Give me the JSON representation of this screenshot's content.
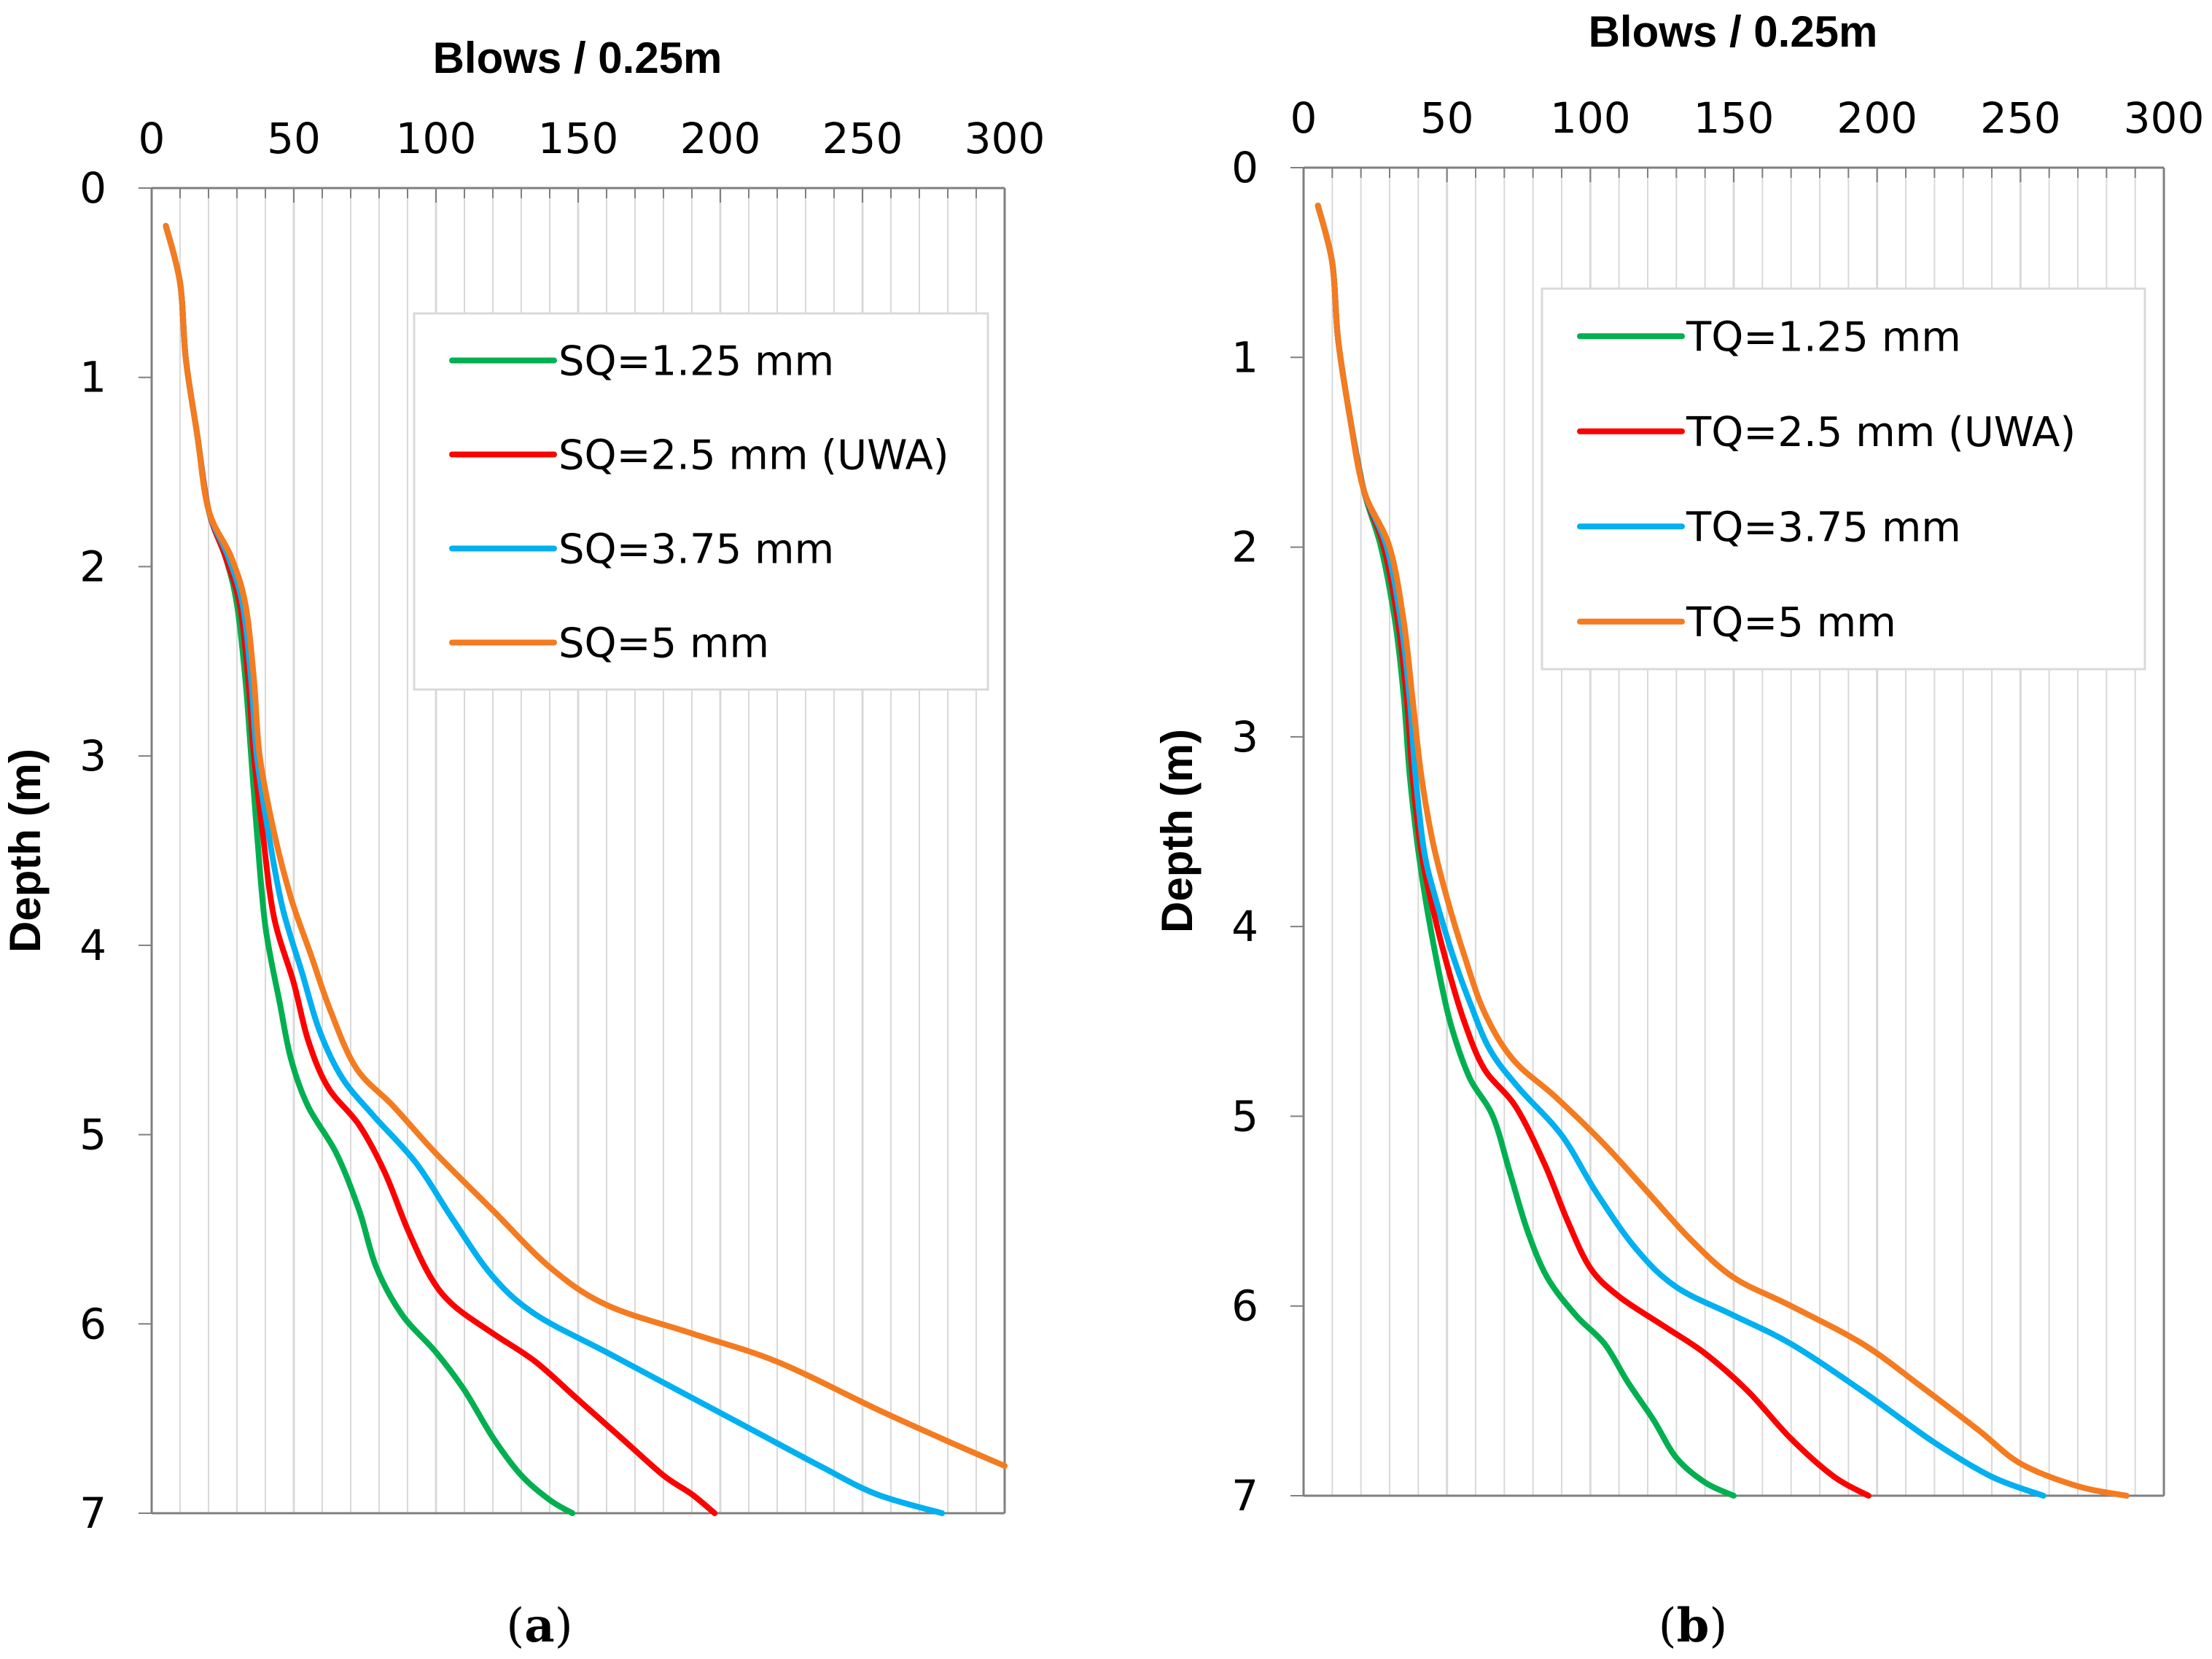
{
  "chart_data": [
    {
      "type": "line",
      "panel_label": {
        "open": "(",
        "letter": "a",
        "close": ")"
      },
      "title": "",
      "xlabel": "Blows  / 0.25m",
      "ylabel": "Depth (m)",
      "x_axis_position": "top",
      "y_inverted": true,
      "xlim": [
        0,
        300
      ],
      "ylim": [
        0,
        7
      ],
      "xticks": [
        "0",
        "50",
        "100",
        "150",
        "200",
        "250",
        "300"
      ],
      "yticks": [
        "0",
        "1",
        "2",
        "3",
        "4",
        "5",
        "6",
        "7"
      ],
      "grid": "vertical",
      "legend": {
        "position": "top-right"
      },
      "series": [
        {
          "name": "SQ=1.25 mm",
          "color": "#00B050",
          "points": [
            [
              5,
              0.2
            ],
            [
              10,
              0.5
            ],
            [
              12,
              0.9
            ],
            [
              16,
              1.3
            ],
            [
              20,
              1.7
            ],
            [
              26,
              1.95
            ],
            [
              30,
              2.2
            ],
            [
              33,
              2.6
            ],
            [
              35,
              3.0
            ],
            [
              37,
              3.4
            ],
            [
              40,
              3.9
            ],
            [
              45,
              4.3
            ],
            [
              49,
              4.6
            ],
            [
              55,
              4.85
            ],
            [
              65,
              5.1
            ],
            [
              73,
              5.4
            ],
            [
              79,
              5.7
            ],
            [
              88,
              5.95
            ],
            [
              100,
              6.15
            ],
            [
              110,
              6.35
            ],
            [
              120,
              6.6
            ],
            [
              130,
              6.8
            ],
            [
              140,
              6.93
            ],
            [
              148,
              7.0
            ]
          ]
        },
        {
          "name": "SQ=2.5 mm (UWA)",
          "color": "#FF0000",
          "points": [
            [
              5,
              0.2
            ],
            [
              10,
              0.5
            ],
            [
              12,
              0.9
            ],
            [
              16,
              1.3
            ],
            [
              20,
              1.7
            ],
            [
              26,
              1.95
            ],
            [
              31,
              2.2
            ],
            [
              34,
              2.6
            ],
            [
              36,
              3.0
            ],
            [
              39,
              3.4
            ],
            [
              43,
              3.85
            ],
            [
              50,
              4.2
            ],
            [
              55,
              4.5
            ],
            [
              62,
              4.75
            ],
            [
              73,
              4.95
            ],
            [
              82,
              5.2
            ],
            [
              90,
              5.5
            ],
            [
              98,
              5.75
            ],
            [
              106,
              5.9
            ],
            [
              120,
              6.05
            ],
            [
              135,
              6.2
            ],
            [
              150,
              6.4
            ],
            [
              165,
              6.6
            ],
            [
              180,
              6.8
            ],
            [
              190,
              6.9
            ],
            [
              198,
              7.0
            ]
          ]
        },
        {
          "name": "SQ=3.75 mm",
          "color": "#00B0F0",
          "points": [
            [
              5,
              0.2
            ],
            [
              10,
              0.5
            ],
            [
              12,
              0.9
            ],
            [
              16,
              1.3
            ],
            [
              20,
              1.7
            ],
            [
              27,
              1.95
            ],
            [
              32,
              2.2
            ],
            [
              35,
              2.6
            ],
            [
              37,
              3.0
            ],
            [
              41,
              3.4
            ],
            [
              46,
              3.8
            ],
            [
              53,
              4.15
            ],
            [
              59,
              4.45
            ],
            [
              67,
              4.7
            ],
            [
              78,
              4.9
            ],
            [
              93,
              5.15
            ],
            [
              106,
              5.45
            ],
            [
              120,
              5.75
            ],
            [
              135,
              5.95
            ],
            [
              160,
              6.15
            ],
            [
              185,
              6.35
            ],
            [
              210,
              6.55
            ],
            [
              235,
              6.75
            ],
            [
              255,
              6.9
            ],
            [
              278,
              7.0
            ]
          ]
        },
        {
          "name": "SQ=5 mm",
          "color": "#F47B20",
          "points": [
            [
              5,
              0.2
            ],
            [
              10,
              0.5
            ],
            [
              12,
              0.9
            ],
            [
              16,
              1.3
            ],
            [
              20,
              1.7
            ],
            [
              28,
              1.95
            ],
            [
              33,
              2.2
            ],
            [
              36,
              2.6
            ],
            [
              38,
              3.0
            ],
            [
              43,
              3.4
            ],
            [
              49,
              3.75
            ],
            [
              56,
              4.05
            ],
            [
              63,
              4.35
            ],
            [
              72,
              4.65
            ],
            [
              85,
              4.85
            ],
            [
              100,
              5.1
            ],
            [
              120,
              5.4
            ],
            [
              140,
              5.7
            ],
            [
              160,
              5.9
            ],
            [
              190,
              6.05
            ],
            [
              220,
              6.2
            ],
            [
              255,
              6.45
            ],
            [
              280,
              6.62
            ],
            [
              300,
              6.75
            ]
          ]
        }
      ]
    },
    {
      "type": "line",
      "panel_label": {
        "open": "(",
        "letter": "b",
        "close": ")"
      },
      "title": "",
      "xlabel": "Blows  / 0.25m",
      "ylabel": "Depth (m)",
      "x_axis_position": "top",
      "y_inverted": true,
      "xlim": [
        0,
        300
      ],
      "ylim": [
        0,
        7
      ],
      "xticks": [
        "0",
        "50",
        "100",
        "150",
        "200",
        "250",
        "300"
      ],
      "yticks": [
        "0",
        "1",
        "2",
        "3",
        "4",
        "5",
        "6",
        "7"
      ],
      "grid": "vertical",
      "legend": {
        "position": "top-right"
      },
      "series": [
        {
          "name": "TQ=1.25 mm",
          "color": "#00B050",
          "points": [
            [
              5,
              0.2
            ],
            [
              10,
              0.5
            ],
            [
              12,
              0.9
            ],
            [
              16,
              1.3
            ],
            [
              21,
              1.7
            ],
            [
              27,
              2.0
            ],
            [
              32,
              2.4
            ],
            [
              35,
              2.8
            ],
            [
              37,
              3.2
            ],
            [
              40,
              3.6
            ],
            [
              43,
              3.9
            ],
            [
              48,
              4.3
            ],
            [
              52,
              4.55
            ],
            [
              58,
              4.8
            ],
            [
              66,
              5.0
            ],
            [
              72,
              5.3
            ],
            [
              78,
              5.6
            ],
            [
              85,
              5.85
            ],
            [
              95,
              6.05
            ],
            [
              105,
              6.2
            ],
            [
              113,
              6.4
            ],
            [
              122,
              6.6
            ],
            [
              130,
              6.8
            ],
            [
              140,
              6.93
            ],
            [
              150,
              7.0
            ]
          ]
        },
        {
          "name": "TQ=2.5 mm (UWA)",
          "color": "#FF0000",
          "points": [
            [
              5,
              0.2
            ],
            [
              10,
              0.5
            ],
            [
              12,
              0.9
            ],
            [
              16,
              1.3
            ],
            [
              21,
              1.7
            ],
            [
              28,
              2.0
            ],
            [
              33,
              2.4
            ],
            [
              36,
              2.8
            ],
            [
              38,
              3.2
            ],
            [
              41,
              3.6
            ],
            [
              45,
              3.9
            ],
            [
              50,
              4.2
            ],
            [
              56,
              4.5
            ],
            [
              63,
              4.75
            ],
            [
              74,
              4.95
            ],
            [
              84,
              5.25
            ],
            [
              92,
              5.55
            ],
            [
              100,
              5.8
            ],
            [
              110,
              5.95
            ],
            [
              125,
              6.1
            ],
            [
              140,
              6.25
            ],
            [
              155,
              6.45
            ],
            [
              170,
              6.7
            ],
            [
              185,
              6.9
            ],
            [
              197,
              7.0
            ]
          ]
        },
        {
          "name": "TQ=3.75 mm",
          "color": "#00B0F0",
          "points": [
            [
              5,
              0.2
            ],
            [
              10,
              0.5
            ],
            [
              12,
              0.9
            ],
            [
              16,
              1.3
            ],
            [
              21,
              1.7
            ],
            [
              29,
              2.0
            ],
            [
              34,
              2.4
            ],
            [
              37,
              2.8
            ],
            [
              39,
              3.2
            ],
            [
              42,
              3.6
            ],
            [
              46,
              3.85
            ],
            [
              52,
              4.15
            ],
            [
              58,
              4.4
            ],
            [
              65,
              4.65
            ],
            [
              75,
              4.85
            ],
            [
              90,
              5.1
            ],
            [
              102,
              5.4
            ],
            [
              116,
              5.7
            ],
            [
              130,
              5.9
            ],
            [
              150,
              6.05
            ],
            [
              170,
              6.2
            ],
            [
              195,
              6.45
            ],
            [
              220,
              6.72
            ],
            [
              240,
              6.9
            ],
            [
              258,
              7.0
            ]
          ]
        },
        {
          "name": "TQ=5 mm",
          "color": "#F47B20",
          "points": [
            [
              5,
              0.2
            ],
            [
              10,
              0.5
            ],
            [
              12,
              0.9
            ],
            [
              16,
              1.3
            ],
            [
              21,
              1.7
            ],
            [
              30,
              2.0
            ],
            [
              35,
              2.4
            ],
            [
              38,
              2.8
            ],
            [
              41,
              3.2
            ],
            [
              45,
              3.55
            ],
            [
              50,
              3.85
            ],
            [
              56,
              4.15
            ],
            [
              63,
              4.45
            ],
            [
              73,
              4.7
            ],
            [
              88,
              4.9
            ],
            [
              105,
              5.15
            ],
            [
              120,
              5.4
            ],
            [
              135,
              5.65
            ],
            [
              150,
              5.85
            ],
            [
              170,
              6.0
            ],
            [
              195,
              6.2
            ],
            [
              215,
              6.42
            ],
            [
              235,
              6.65
            ],
            [
              250,
              6.83
            ],
            [
              270,
              6.95
            ],
            [
              287,
              7.0
            ]
          ]
        }
      ]
    }
  ]
}
